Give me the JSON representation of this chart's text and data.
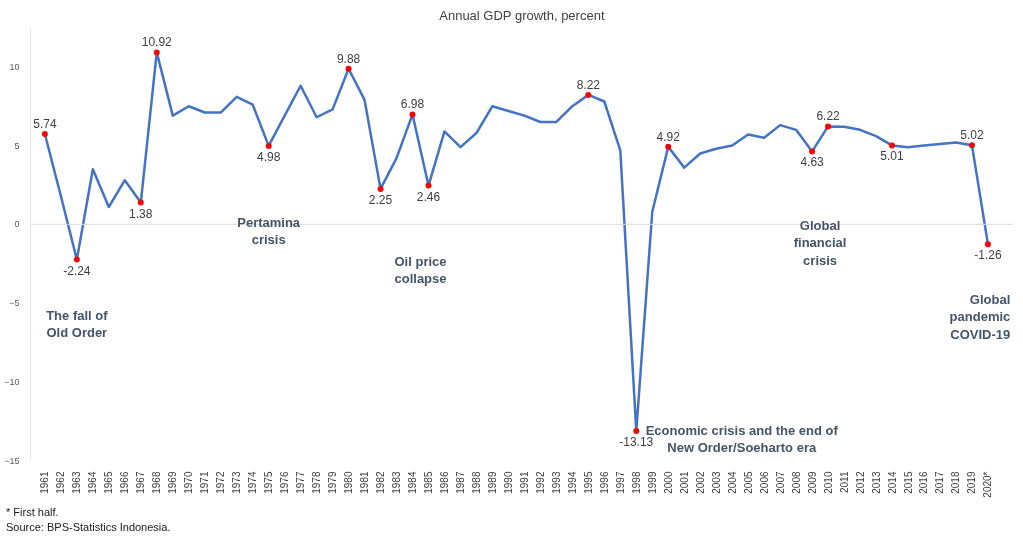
{
  "chart_data": {
    "type": "line",
    "title": "Annual GDP growth, percent",
    "categories": [
      "1961",
      "1962",
      "1963",
      "1964",
      "1965",
      "1966",
      "1967",
      "1968",
      "1969",
      "1970",
      "1971",
      "1972",
      "1973",
      "1974",
      "1975",
      "1976",
      "1977",
      "1978",
      "1979",
      "1980",
      "1981",
      "1982",
      "1983",
      "1984",
      "1985",
      "1986",
      "1987",
      "1988",
      "1989",
      "1990",
      "1991",
      "1992",
      "1993",
      "1994",
      "1995",
      "1996",
      "1997",
      "1998",
      "1999",
      "2000",
      "2001",
      "2002",
      "2003",
      "2004",
      "2005",
      "2006",
      "2007",
      "2008",
      "2009",
      "2010",
      "2011",
      "2012",
      "2013",
      "2014",
      "2015",
      "2016",
      "2017",
      "2018",
      "2019",
      "2020*"
    ],
    "series": [
      {
        "color": "#4472c4",
        "values": [
          5.74,
          1.8,
          -2.24,
          3.5,
          1.1,
          2.8,
          1.38,
          10.92,
          6.9,
          7.5,
          7.1,
          7.1,
          8.1,
          7.6,
          4.98,
          6.9,
          8.8,
          6.8,
          7.3,
          9.88,
          7.9,
          2.25,
          4.2,
          6.98,
          2.46,
          5.9,
          4.9,
          5.8,
          7.5,
          7.2,
          6.9,
          6.5,
          6.5,
          7.5,
          8.22,
          7.8,
          4.7,
          -13.13,
          0.8,
          4.92,
          3.6,
          4.5,
          4.8,
          5.0,
          5.7,
          5.5,
          6.3,
          6.0,
          4.63,
          6.22,
          6.2,
          6.0,
          5.6,
          5.01,
          4.9,
          5.0,
          5.1,
          5.2,
          5.02,
          -1.26
        ]
      },
      {
        "type": "scatter",
        "color": "#ff0000",
        "values": [
          5.74,
          null,
          -2.24,
          null,
          null,
          null,
          1.38,
          10.92,
          null,
          null,
          null,
          null,
          null,
          null,
          4.98,
          null,
          null,
          null,
          null,
          9.88,
          null,
          2.25,
          null,
          6.98,
          2.46,
          null,
          null,
          null,
          null,
          null,
          null,
          null,
          null,
          null,
          8.22,
          null,
          null,
          -13.13,
          null,
          4.92,
          null,
          null,
          null,
          null,
          null,
          null,
          null,
          null,
          4.63,
          6.22,
          null,
          null,
          null,
          5.01,
          null,
          null,
          null,
          null,
          5.02,
          -1.26
        ],
        "data_labels": true
      }
    ],
    "ylim": [
      -15,
      12.5
    ],
    "yticks": [
      -15,
      -10,
      -5,
      0,
      5,
      10
    ],
    "grid": false,
    "marker": "none",
    "line_style": "solid",
    "ref_lines": [
      {
        "axis": "y",
        "value": 0,
        "color": "#d9d9d9"
      }
    ],
    "annotations": [
      "The fall of\nOld Order",
      "Pertamina\ncrisis",
      "Oil price\ncollapse",
      "Economic crisis and the end of\nNew Order/Soeharto era",
      "Global\nfinancial\ncrisis",
      "Global\npandemic\nCOVID-19",
      "* First half.",
      "Source: BPS-Statistics Indonesia."
    ]
  }
}
